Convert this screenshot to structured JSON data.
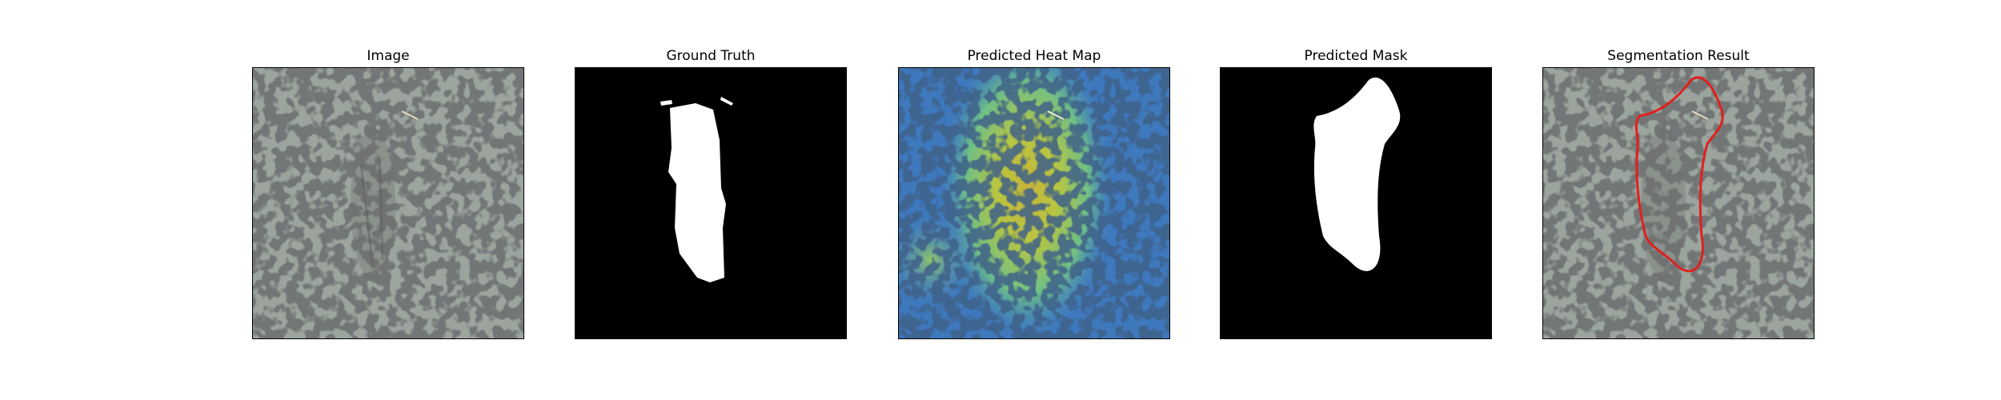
{
  "figure": {
    "panels": [
      {
        "title": "Image",
        "kind": "texture-image"
      },
      {
        "title": "Ground Truth",
        "kind": "binary-mask"
      },
      {
        "title": "Predicted Heat Map",
        "kind": "heatmap-overlay"
      },
      {
        "title": "Predicted Mask",
        "kind": "binary-mask"
      },
      {
        "title": "Segmentation Result",
        "kind": "contour-overlay"
      }
    ]
  },
  "colors": {
    "texture_base": "#9ba59d",
    "texture_spot": "#2c2f2d",
    "mask_foreground": "#ffffff",
    "mask_background": "#000000",
    "heat_low": "#3b6fc0",
    "heat_mid": "#6fbf8a",
    "heat_high": "#c8c23a",
    "contour": "#e0201f"
  }
}
